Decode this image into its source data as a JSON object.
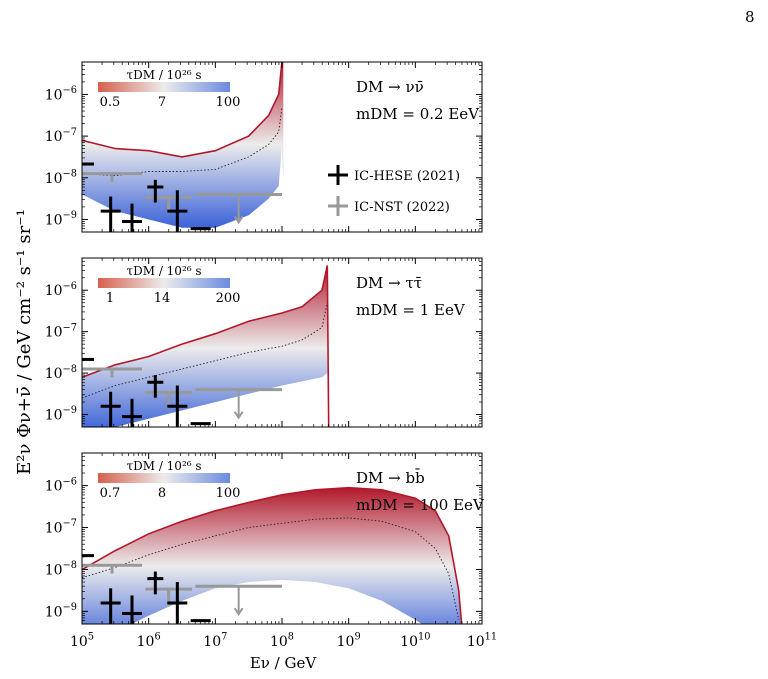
{
  "page": {
    "number": "8"
  },
  "figure": {
    "ylabel": "E²ν Φν+ν̄ / GeV cm⁻² s⁻¹ sr⁻¹",
    "xlabel": "Eν / GeV",
    "legend": [
      {
        "label": "IC-HESE (2021)",
        "color": "#000000"
      },
      {
        "label": "IC-NST (2022)",
        "color": "#999999"
      }
    ],
    "colorbar_title": "τDM / 10²⁶ s",
    "colors": {
      "short_lifetime": "#b2182b",
      "mid": "#e6e6e6",
      "long_lifetime": "#3b62d8"
    }
  },
  "chart_data": [
    {
      "type": "area",
      "panel": "top",
      "channel": "DM → νν̄",
      "mass": "mDM = 0.2 EeV",
      "x_scale": "log",
      "y_scale": "log",
      "xlim": [
        100000,
        100000000000
      ],
      "ylim": [
        5e-10,
        6e-06
      ],
      "colorbar_ticks": [
        "0.5",
        "7",
        "100"
      ],
      "upper_edge": {
        "logx": [
          5,
          5.5,
          6,
          6.5,
          7,
          7.5,
          7.8,
          7.95,
          8,
          8.02
        ],
        "logy": [
          -7.1,
          -7.3,
          -7.35,
          -7.5,
          -7.35,
          -7.0,
          -6.5,
          -6.0,
          -5.2,
          -5.2
        ]
      },
      "dotted_median": {
        "logx": [
          5,
          5.5,
          6,
          6.5,
          7,
          7.5,
          7.8,
          7.95,
          8
        ],
        "logy": [
          -7.9,
          -7.95,
          -7.85,
          -7.85,
          -7.8,
          -7.5,
          -7.2,
          -6.9,
          -6.3
        ]
      },
      "lower_edge": {
        "logx": [
          5,
          5.5,
          6,
          6.5,
          7,
          7.5,
          7.8,
          7.95,
          8,
          8.02
        ],
        "logy": [
          -8.4,
          -8.8,
          -9.0,
          -9.2,
          -9.2,
          -8.9,
          -8.5,
          -8.2,
          -7.2,
          -8.0
        ]
      }
    },
    {
      "type": "area",
      "panel": "middle",
      "channel": "DM → ττ̄",
      "mass": "mDM = 1 EeV",
      "x_scale": "log",
      "y_scale": "log",
      "xlim": [
        100000,
        100000000000
      ],
      "ylim": [
        5e-10,
        6e-06
      ],
      "colorbar_ticks": [
        "1",
        "14",
        "200"
      ],
      "upper_edge": {
        "logx": [
          5,
          5.5,
          6,
          6.5,
          7,
          7.5,
          8,
          8.3,
          8.6,
          8.68,
          8.7
        ],
        "logy": [
          -8.1,
          -7.8,
          -7.6,
          -7.3,
          -7.05,
          -6.75,
          -6.55,
          -6.4,
          -6.0,
          -5.4,
          -9.3
        ]
      },
      "dotted_median": {
        "logx": [
          5,
          5.5,
          6,
          6.5,
          7,
          7.5,
          8,
          8.3,
          8.6,
          8.68
        ],
        "logy": [
          -8.6,
          -8.3,
          -8.1,
          -7.9,
          -7.7,
          -7.5,
          -7.35,
          -7.2,
          -6.9,
          -6.3
        ]
      },
      "lower_edge": {
        "logx": [
          5,
          5.5,
          6,
          6.5,
          7,
          7.5,
          8,
          8.3,
          8.6,
          8.68,
          8.7
        ],
        "logy": [
          -9.4,
          -9.3,
          -9.1,
          -8.9,
          -8.7,
          -8.5,
          -8.3,
          -8.2,
          -8.1,
          -8.0,
          -9.3
        ]
      }
    },
    {
      "type": "area",
      "panel": "bottom",
      "channel": "DM → bb̄",
      "mass": "mDM = 100 EeV",
      "x_scale": "log",
      "y_scale": "log",
      "xlim": [
        100000,
        100000000000
      ],
      "ylim": [
        5e-10,
        6e-06
      ],
      "colorbar_ticks": [
        "0.7",
        "8",
        "100"
      ],
      "upper_edge": {
        "logx": [
          5,
          5.5,
          6,
          6.5,
          7,
          7.5,
          8,
          8.5,
          9,
          9.5,
          10,
          10.3,
          10.5,
          10.65,
          10.7
        ],
        "logy": [
          -8.0,
          -7.55,
          -7.15,
          -6.85,
          -6.6,
          -6.4,
          -6.22,
          -6.1,
          -6.05,
          -6.1,
          -6.3,
          -6.6,
          -7.2,
          -8.5,
          -9.4
        ]
      },
      "dotted_median": {
        "logx": [
          5,
          5.5,
          6,
          6.5,
          7,
          7.5,
          8,
          8.5,
          9,
          9.5,
          10,
          10.3,
          10.5,
          10.65
        ],
        "logy": [
          -8.2,
          -7.95,
          -7.65,
          -7.4,
          -7.2,
          -7.0,
          -6.9,
          -6.8,
          -6.77,
          -6.85,
          -7.1,
          -7.5,
          -8.1,
          -9.2
        ]
      },
      "lower_edge": {
        "logx": [
          5,
          5.5,
          6,
          6.5,
          7,
          7.5,
          8,
          8.5,
          9,
          9.5,
          10,
          10.3,
          10.5,
          10.65,
          10.7
        ],
        "logy": [
          -9.8,
          -9.5,
          -9.1,
          -8.75,
          -8.45,
          -8.3,
          -8.25,
          -8.3,
          -8.45,
          -8.75,
          -9.2,
          -9.5,
          -9.7,
          -9.8,
          -9.8
        ]
      }
    }
  ],
  "data_points": {
    "hese": [
      {
        "x": 5.08,
        "x0": 5.0,
        "x1": 5.18,
        "y": -7.67,
        "ylo": -7.67,
        "yhi": -7.67
      },
      {
        "x": 5.43,
        "x0": 5.28,
        "x1": 5.58,
        "y": -8.8,
        "ylo": -9.3,
        "yhi": -8.45
      },
      {
        "x": 5.75,
        "x0": 5.6,
        "x1": 5.9,
        "y": -9.05,
        "ylo": -9.3,
        "yhi": -8.62
      },
      {
        "x": 6.1,
        "x0": 5.98,
        "x1": 6.22,
        "y": -8.22,
        "ylo": -8.45,
        "yhi": -8.05
      },
      {
        "x": 6.43,
        "x0": 6.28,
        "x1": 6.58,
        "y": -8.8,
        "ylo": -9.3,
        "yhi": -8.3
      },
      {
        "x": 6.78,
        "x0": 6.63,
        "x1": 6.93,
        "y": -9.22,
        "ylo": -9.22,
        "yhi": -9.22
      }
    ],
    "nst": [
      {
        "x": 5.45,
        "x0": 5.0,
        "x1": 5.9,
        "y": -7.9,
        "ylo": -8.05,
        "yhi": -7.9
      },
      {
        "x": 6.3,
        "x0": 5.95,
        "x1": 6.65,
        "y": -8.47,
        "ylo": -8.8,
        "yhi": -8.47
      },
      {
        "x": 7.35,
        "x0": 6.7,
        "x1": 8.0,
        "y": -8.4,
        "ylo": -8.4,
        "yhi": -8.4,
        "upper_limit": true
      }
    ]
  }
}
